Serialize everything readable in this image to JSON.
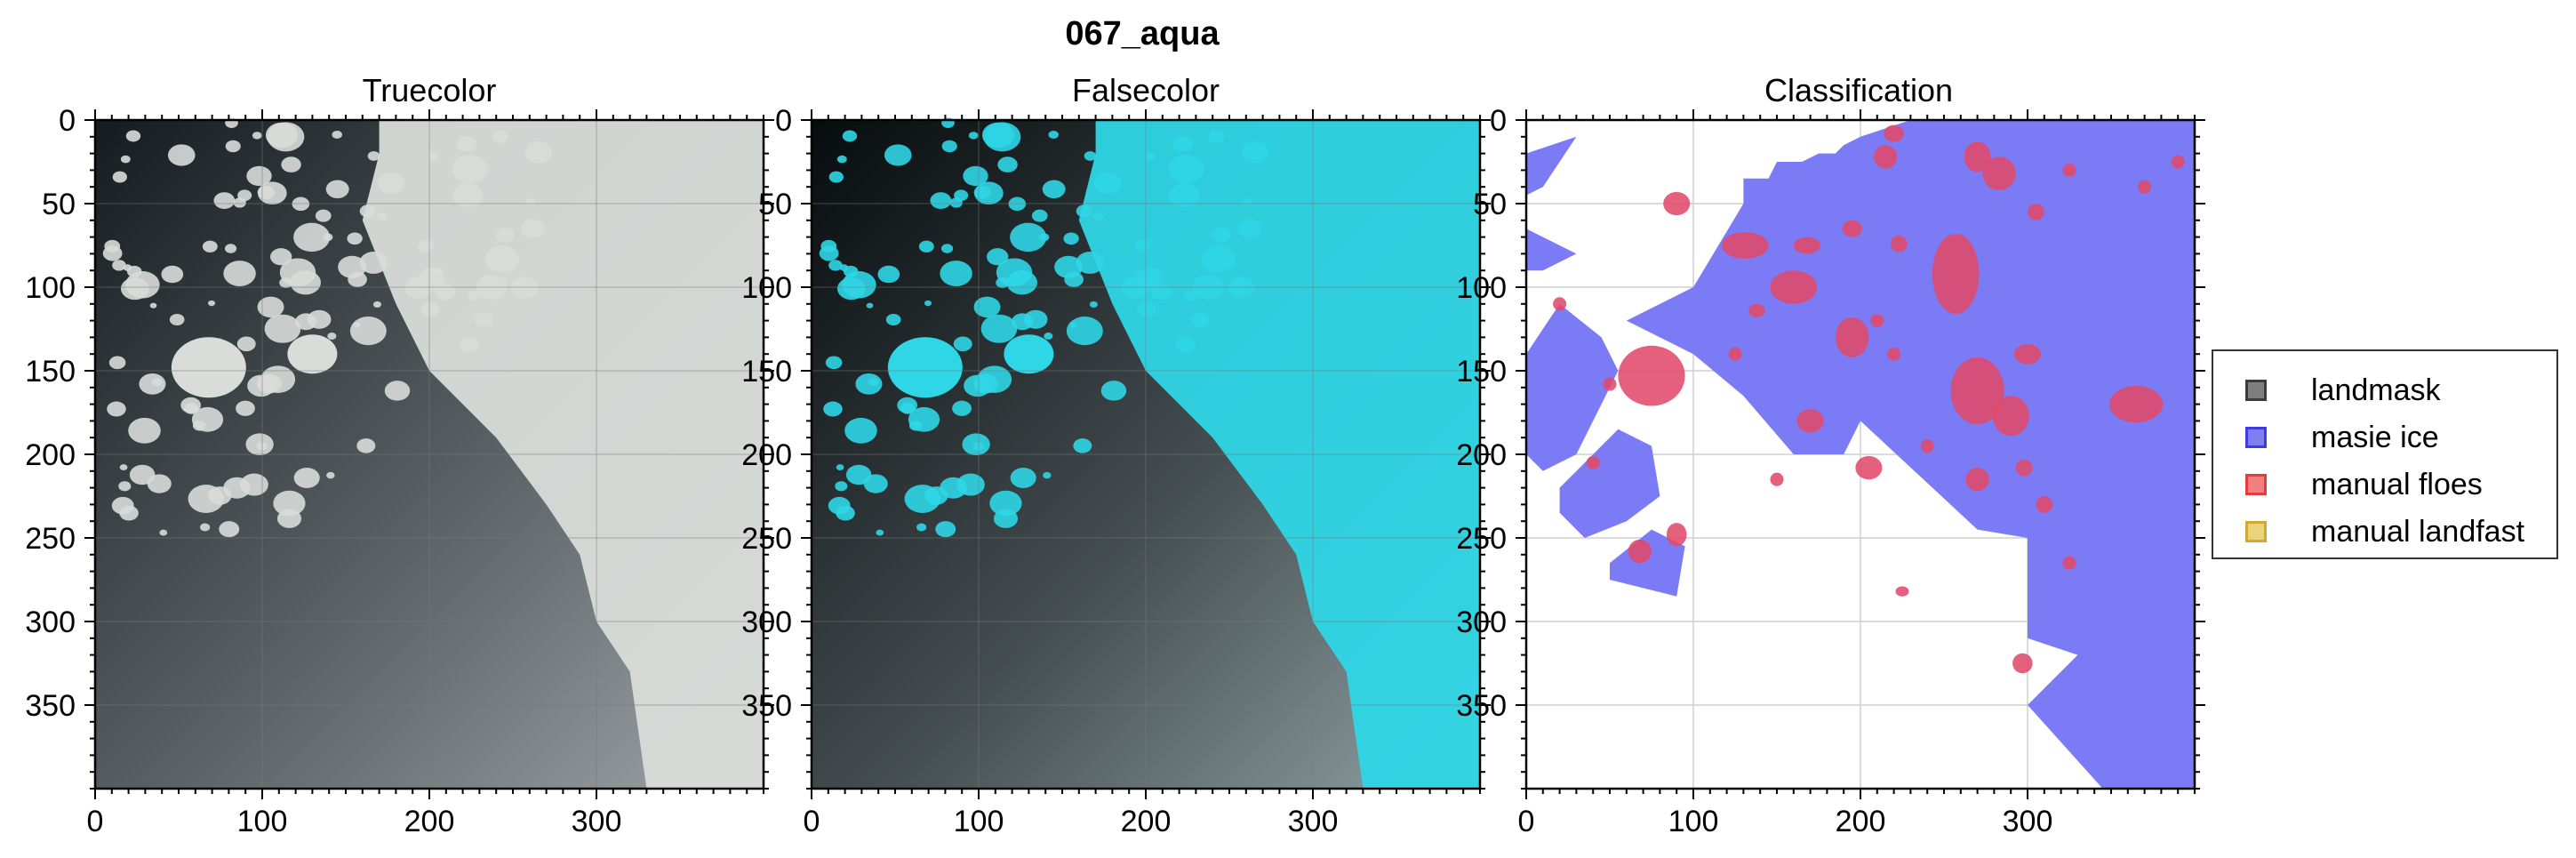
{
  "figure_title": "067_aqua",
  "chart_data": [
    {
      "type": "image",
      "title": "Truecolor",
      "xlim": [
        0,
        400
      ],
      "ylim": [
        400,
        0
      ],
      "xticks": [
        0,
        100,
        200,
        300
      ],
      "yticks": [
        0,
        50,
        100,
        150,
        200,
        250,
        300,
        350
      ],
      "ice_color": "#d9dcd9",
      "water_color": "#1b2427",
      "cloud_color": "#8e9396"
    },
    {
      "type": "image",
      "title": "Falsecolor",
      "xlim": [
        0,
        400
      ],
      "ylim": [
        400,
        0
      ],
      "xticks": [
        0,
        100,
        200,
        300
      ],
      "yticks": [
        0,
        50,
        100,
        150,
        200,
        250,
        300,
        350
      ],
      "ice_color": "#2fd6e6",
      "water_color": "#0c1214",
      "cloud_color": "#7b8a8c"
    },
    {
      "type": "image",
      "title": "Classification",
      "xlim": [
        0,
        400
      ],
      "ylim": [
        400,
        0
      ],
      "xticks": [
        0,
        100,
        200,
        300
      ],
      "yticks": [
        0,
        50,
        100,
        150,
        200,
        250,
        300,
        350
      ],
      "masie_ice_polygons": [
        [
          [
            100,
            100
          ],
          [
            130,
            50
          ],
          [
            130,
            35
          ],
          [
            145,
            35
          ],
          [
            150,
            25
          ],
          [
            165,
            25
          ],
          [
            175,
            20
          ],
          [
            185,
            20
          ],
          [
            190,
            15
          ],
          [
            200,
            10
          ],
          [
            215,
            5
          ],
          [
            230,
            0
          ],
          [
            400,
            0
          ],
          [
            400,
            400
          ],
          [
            345,
            400
          ],
          [
            300,
            350
          ],
          [
            330,
            320
          ],
          [
            300,
            310
          ],
          [
            300,
            250
          ],
          [
            270,
            245
          ],
          [
            200,
            180
          ],
          [
            190,
            200
          ],
          [
            160,
            200
          ],
          [
            130,
            165
          ],
          [
            100,
            140
          ],
          [
            60,
            120
          ]
        ],
        [
          [
            0,
            140
          ],
          [
            20,
            110
          ],
          [
            45,
            130
          ],
          [
            55,
            150
          ],
          [
            45,
            170
          ],
          [
            30,
            200
          ],
          [
            10,
            210
          ],
          [
            0,
            200
          ]
        ],
        [
          [
            0,
            20
          ],
          [
            30,
            10
          ],
          [
            10,
            40
          ],
          [
            0,
            45
          ]
        ],
        [
          [
            0,
            65
          ],
          [
            30,
            80
          ],
          [
            10,
            90
          ],
          [
            0,
            90
          ]
        ],
        [
          [
            20,
            220
          ],
          [
            55,
            185
          ],
          [
            75,
            195
          ],
          [
            80,
            225
          ],
          [
            60,
            240
          ],
          [
            35,
            250
          ],
          [
            20,
            235
          ]
        ],
        [
          [
            50,
            265
          ],
          [
            75,
            245
          ],
          [
            95,
            255
          ],
          [
            90,
            285
          ],
          [
            70,
            280
          ],
          [
            50,
            275
          ]
        ]
      ],
      "manual_floes": [
        [
          75,
          153,
          20,
          18
        ],
        [
          220,
          8,
          6,
          5
        ],
        [
          215,
          22,
          7,
          7
        ],
        [
          270,
          22,
          8,
          9
        ],
        [
          257,
          92,
          14,
          24
        ],
        [
          283,
          32,
          10,
          10
        ],
        [
          131,
          75,
          14,
          8
        ],
        [
          160,
          100,
          14,
          10
        ],
        [
          168,
          75,
          8,
          5
        ],
        [
          195,
          130,
          10,
          12
        ],
        [
          270,
          162,
          16,
          20
        ],
        [
          290,
          177,
          11,
          12
        ],
        [
          365,
          170,
          16,
          11
        ],
        [
          90,
          50,
          8,
          7
        ],
        [
          170,
          180,
          8,
          7
        ],
        [
          195,
          65,
          6,
          5
        ],
        [
          223,
          74,
          5,
          5
        ],
        [
          305,
          55,
          5,
          5
        ],
        [
          300,
          140,
          8,
          6
        ],
        [
          205,
          208,
          8,
          7
        ],
        [
          270,
          215,
          7,
          7
        ],
        [
          298,
          208,
          5,
          5
        ],
        [
          310,
          230,
          5,
          5
        ],
        [
          325,
          265,
          4,
          4
        ],
        [
          68,
          258,
          7,
          7
        ],
        [
          90,
          248,
          6,
          7
        ],
        [
          225,
          282,
          4,
          3
        ],
        [
          297,
          325,
          6,
          6
        ],
        [
          138,
          114,
          5,
          4
        ],
        [
          150,
          215,
          4,
          4
        ],
        [
          50,
          158,
          4,
          4
        ],
        [
          125,
          140,
          4,
          4
        ],
        [
          40,
          205,
          4,
          4
        ],
        [
          20,
          110,
          4,
          4
        ],
        [
          220,
          140,
          4,
          4
        ],
        [
          390,
          25,
          4,
          4
        ],
        [
          325,
          30,
          4,
          4
        ],
        [
          370,
          40,
          4,
          4
        ],
        [
          240,
          195,
          4,
          4
        ],
        [
          210,
          120,
          4,
          4
        ]
      ]
    }
  ],
  "legend": {
    "items": [
      {
        "label": "landmask",
        "fill": "#7f7f7f",
        "edge": "#3c3c3c"
      },
      {
        "label": "masie ice",
        "fill": "#7f7ff2",
        "edge": "#3c3ce0"
      },
      {
        "label": "manual floes",
        "fill": "#f28080",
        "edge": "#e43c3c"
      },
      {
        "label": "manual landfast",
        "fill": "#ebd37c",
        "edge": "#cfa838"
      }
    ]
  }
}
